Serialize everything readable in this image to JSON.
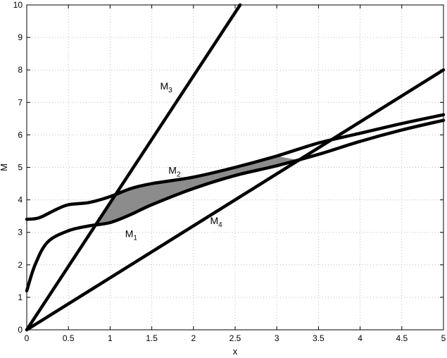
{
  "chart_data": {
    "type": "line",
    "title": "",
    "xlabel": "x",
    "ylabel": "M",
    "xlim": [
      0,
      5
    ],
    "ylim": [
      0,
      10
    ],
    "xticks": [
      0,
      0.5,
      1,
      1.5,
      2,
      2.5,
      3,
      3.5,
      4,
      4.5,
      5
    ],
    "yticks": [
      0,
      1,
      2,
      3,
      4,
      5,
      6,
      7,
      8,
      9,
      10
    ],
    "grid": true,
    "colors": {
      "curve": "#000000",
      "shade": "#8c8c8c",
      "grid": "#bdbdbd"
    },
    "series": [
      {
        "name": "M1",
        "x": [
          0,
          0.1,
          0.25,
          0.5,
          0.75,
          1,
          1.25,
          1.5,
          2,
          2.5,
          3,
          3.5,
          4,
          4.5,
          5
        ],
        "y": [
          1.2,
          2.0,
          2.7,
          3.05,
          3.2,
          3.3,
          3.55,
          3.85,
          4.35,
          4.75,
          5.05,
          5.4,
          5.8,
          6.15,
          6.45
        ]
      },
      {
        "name": "M2",
        "x": [
          0,
          0.15,
          0.35,
          0.5,
          0.75,
          1,
          1.25,
          1.5,
          2,
          2.5,
          3,
          3.5,
          4,
          4.5,
          5
        ],
        "y": [
          3.4,
          3.45,
          3.7,
          3.85,
          3.92,
          4.1,
          4.35,
          4.5,
          4.7,
          5.0,
          5.35,
          5.75,
          6.05,
          6.35,
          6.62
        ]
      },
      {
        "name": "M3",
        "x": [
          0,
          2.56
        ],
        "y": [
          0,
          10
        ]
      },
      {
        "name": "M4",
        "x": [
          0,
          5
        ],
        "y": [
          0,
          8
        ]
      }
    ],
    "shaded_region": {
      "x": [
        0.82,
        1,
        1.25,
        1.5,
        2,
        2.5,
        3,
        3.3,
        3.3,
        3,
        2.5,
        2,
        1.5,
        1.25,
        1.08
      ],
      "y": [
        3.2,
        3.3,
        3.55,
        3.85,
        4.35,
        4.75,
        5.05,
        5.2,
        5.2,
        5.35,
        5.0,
        4.7,
        4.5,
        4.35,
        4.2
      ]
    },
    "annotations": [
      {
        "text": "M",
        "sub": "3",
        "x": 1.6,
        "y": 7.4
      },
      {
        "text": "M",
        "sub": "2",
        "x": 1.7,
        "y": 4.8
      },
      {
        "text": "M",
        "sub": "1",
        "x": 1.18,
        "y": 2.85
      },
      {
        "text": "M",
        "sub": "4",
        "x": 2.2,
        "y": 3.25
      }
    ]
  }
}
